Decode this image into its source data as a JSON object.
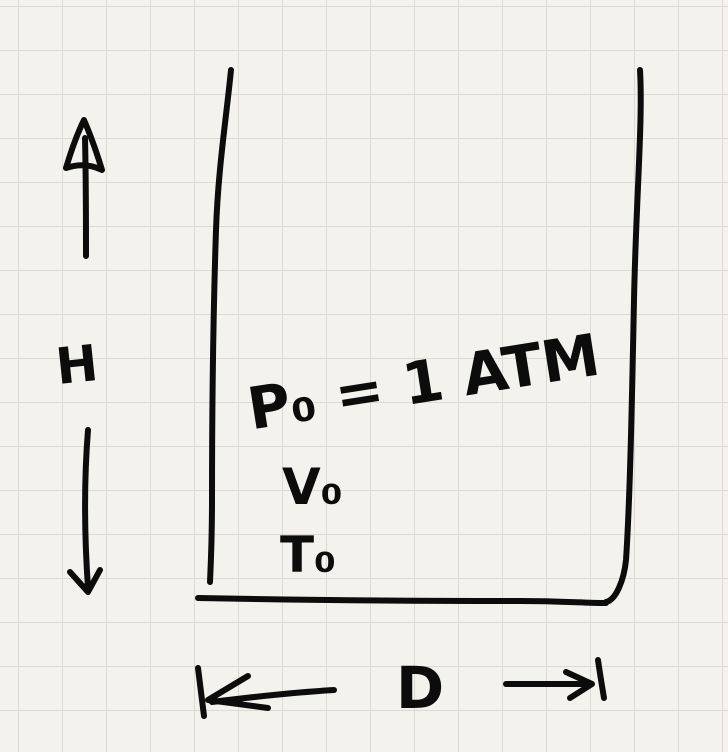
{
  "labels": {
    "height": "H",
    "pressure": "P₀ = 1 ATM",
    "volume": "V₀",
    "temperature": "T₀",
    "diameter": "D"
  }
}
